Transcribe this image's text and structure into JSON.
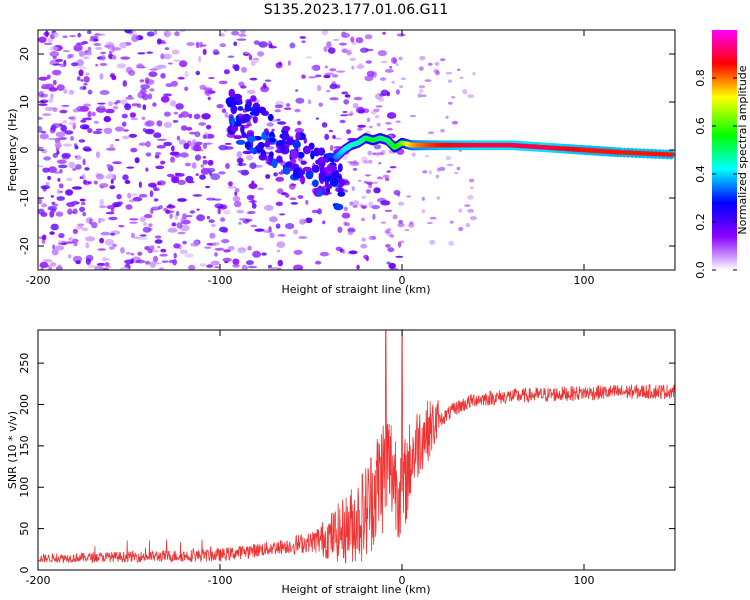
{
  "figure": {
    "title": "S135.2023.177.01.06.G11"
  },
  "chart_data": [
    {
      "type": "heatmap",
      "xlabel": "Height of straight line (km)",
      "ylabel": "Frequency (Hz)",
      "xlim": [
        -200,
        150
      ],
      "ylim": [
        -25,
        25
      ],
      "xticks": [
        -200,
        -100,
        0,
        100
      ],
      "yticks": [
        -20,
        -10,
        0,
        10,
        20
      ],
      "colorbar": {
        "label": "Normalized spectral amplitude",
        "range": [
          0.0,
          1.0
        ],
        "ticks": [
          "0.0",
          "0.2",
          "0.4",
          "0.6",
          "0.8"
        ],
        "tick_values": [
          0.0,
          0.2,
          0.4,
          0.6,
          0.8
        ],
        "colors": [
          "#ffffff",
          "#8a00ff",
          "#0000ff",
          "#00ffff",
          "#00ff00",
          "#ffff00",
          "#ff0000",
          "#ff00ff"
        ]
      },
      "signal_trace": {
        "x": [
          -36,
          -32,
          -28,
          -24,
          -20,
          -16,
          -12,
          -8,
          -4,
          0,
          5,
          10,
          20,
          40,
          60,
          80,
          100,
          120,
          150
        ],
        "freq": [
          -1.5,
          0,
          1,
          1.5,
          2.5,
          2,
          2.5,
          2,
          0.5,
          1.5,
          1,
          1,
          1,
          1,
          1,
          0.5,
          0,
          -0.5,
          -1
        ],
        "amplitude": [
          0.35,
          0.4,
          0.45,
          0.45,
          0.5,
          0.55,
          0.5,
          0.5,
          0.55,
          0.6,
          0.75,
          0.8,
          0.85,
          0.9,
          0.9,
          0.9,
          0.85,
          0.85,
          0.85
        ]
      },
      "grid": false
    },
    {
      "type": "line",
      "xlabel": "Height of straight line (km)",
      "ylabel": "SNR (10 * v/v)",
      "xlim": [
        -200,
        150
      ],
      "ylim": [
        0,
        290
      ],
      "xticks": [
        -200,
        -100,
        0,
        100
      ],
      "yticks": [
        0,
        50,
        100,
        150,
        200,
        250
      ],
      "series": [
        {
          "color": "#ee3333",
          "x": [
            -200,
            -150,
            -100,
            -80,
            -60,
            -50,
            -40,
            -30,
            -20,
            -12,
            -8,
            -5,
            0,
            5,
            10,
            20,
            30,
            40,
            60,
            80,
            100,
            120,
            150
          ],
          "y": [
            14,
            16,
            18,
            24,
            30,
            34,
            40,
            50,
            70,
            110,
            130,
            120,
            90,
            135,
            160,
            180,
            196,
            206,
            210,
            212,
            214,
            215,
            216
          ],
          "spikes": [
            {
              "x": -9,
              "y": 290
            },
            {
              "x": 0,
              "y": 290
            }
          ]
        }
      ],
      "grid": false
    }
  ]
}
